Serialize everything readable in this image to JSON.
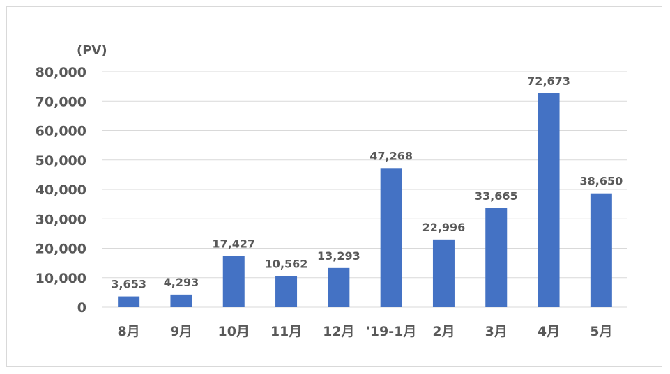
{
  "chart_data": {
    "type": "bar",
    "unit_label": "(PV)",
    "categories": [
      "8月",
      "9月",
      "10月",
      "11月",
      "12月",
      "'19-1月",
      "2月",
      "3月",
      "4月",
      "5月"
    ],
    "values": [
      3653,
      4293,
      17427,
      10562,
      13293,
      47268,
      22996,
      33665,
      72673,
      38650
    ],
    "value_labels": [
      "3,653",
      "4,293",
      "17,427",
      "10,562",
      "13,293",
      "47,268",
      "22,996",
      "33,665",
      "72,673",
      "38,650"
    ],
    "y_ticks": [
      0,
      10000,
      20000,
      30000,
      40000,
      50000,
      60000,
      70000,
      80000
    ],
    "y_tick_labels": [
      "0",
      "10,000",
      "20,000",
      "30,000",
      "40,000",
      "50,000",
      "60,000",
      "70,000",
      "80,000"
    ],
    "ylim": [
      0,
      80000
    ],
    "grid": true,
    "bar_color": "#4472c4",
    "grid_color": "#d9d9d9"
  }
}
